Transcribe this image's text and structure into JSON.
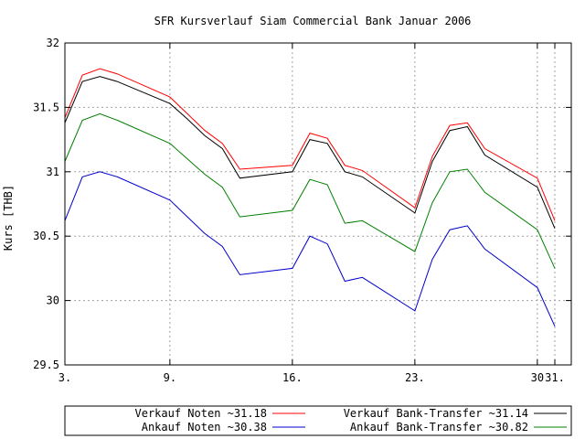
{
  "chart_data": {
    "type": "line",
    "title": "SFR Kursverlauf Siam Commercial Bank Januar 2006",
    "xlabel": "",
    "ylabel": "Kurs [THB]",
    "xlim": [
      "2006-01-03",
      "2006-01-31"
    ],
    "ylim": [
      29.5,
      32
    ],
    "grid": true,
    "legend_placement": "bottom",
    "y_ticks": [
      "29.5",
      "30",
      "30.5",
      "31",
      "31.5",
      "32"
    ],
    "x_ticks": [
      {
        "date": "2006-01-03",
        "label": "3."
      },
      {
        "date": "2006-01-09",
        "label": "9."
      },
      {
        "date": "2006-01-16",
        "label": "16."
      },
      {
        "date": "2006-01-23",
        "label": "23."
      },
      {
        "date": "2006-01-30",
        "label": "30"
      },
      {
        "date": "2006-01-31",
        "label": "31."
      }
    ],
    "x": [
      "2006-01-03",
      "2006-01-04",
      "2006-01-05",
      "2006-01-06",
      "2006-01-09",
      "2006-01-10",
      "2006-01-11",
      "2006-01-12",
      "2006-01-13",
      "2006-01-16",
      "2006-01-17",
      "2006-01-18",
      "2006-01-19",
      "2006-01-20",
      "2006-01-23",
      "2006-01-24",
      "2006-01-25",
      "2006-01-26",
      "2006-01-27",
      "2006-01-30",
      "2006-01-31"
    ],
    "series": [
      {
        "name": "Verkauf Noten ~31.18",
        "color": "#ff0000",
        "values": [
          31.42,
          31.75,
          31.8,
          31.76,
          31.58,
          31.45,
          31.32,
          31.22,
          31.02,
          31.05,
          31.3,
          31.26,
          31.05,
          31.01,
          30.72,
          31.12,
          31.36,
          31.38,
          31.18,
          30.95,
          30.62
        ]
      },
      {
        "name": "Verkauf Bank-Transfer ~31.14",
        "color": "#000000",
        "values": [
          31.38,
          31.7,
          31.74,
          31.7,
          31.53,
          31.41,
          31.28,
          31.18,
          30.95,
          31.0,
          31.25,
          31.22,
          31.0,
          30.96,
          30.68,
          31.08,
          31.32,
          31.35,
          31.13,
          30.88,
          30.56
        ]
      },
      {
        "name": "Ankauf Noten ~30.38",
        "color": "#0000cc",
        "values": [
          30.62,
          30.96,
          31.0,
          30.96,
          30.78,
          30.65,
          30.52,
          30.42,
          30.2,
          30.25,
          30.5,
          30.44,
          30.15,
          30.18,
          29.92,
          30.32,
          30.55,
          30.58,
          30.4,
          30.1,
          29.8
        ]
      },
      {
        "name": "Ankauf Bank-Transfer ~30.82",
        "color": "#008000",
        "values": [
          31.08,
          31.4,
          31.45,
          31.4,
          31.22,
          31.1,
          30.98,
          30.88,
          30.65,
          30.7,
          30.94,
          30.9,
          30.6,
          30.62,
          30.38,
          30.76,
          31.0,
          31.02,
          30.84,
          30.55,
          30.25
        ]
      }
    ]
  }
}
